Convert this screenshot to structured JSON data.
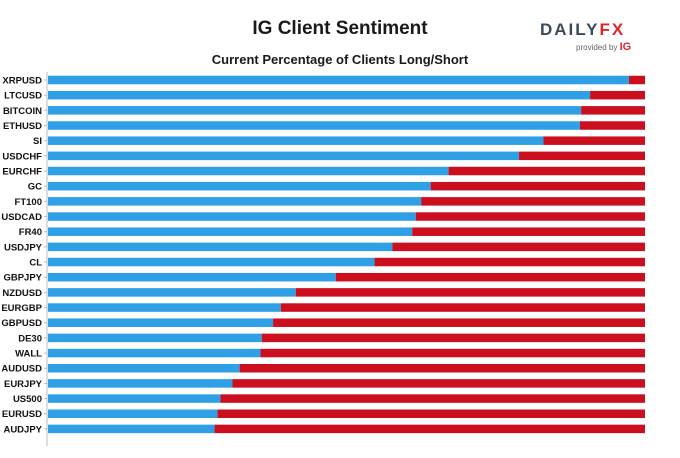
{
  "header": {
    "title": "IG Client Sentiment",
    "subtitle": "Current Percentage of Clients Long/Short",
    "logo_text_main": "DAILY",
    "logo_text_fx": "FX",
    "logo_provided_by": "provided by",
    "logo_ig": "IG"
  },
  "colors": {
    "long": "#2f9fe6",
    "short": "#cc0f1f"
  },
  "chart_data": {
    "type": "bar",
    "orientation": "horizontal",
    "stacked": true,
    "title": "IG Client Sentiment",
    "subtitle": "Current Percentage of Clients Long/Short",
    "xlim": [
      0,
      100
    ],
    "categories": [
      "XRPUSD",
      "LTCUSD",
      "BITCOIN",
      "ETHUSD",
      "SI",
      "USDCHF",
      "EURCHF",
      "GC",
      "FT100",
      "USDCAD",
      "FR40",
      "USDJPY",
      "CL",
      "GBPJPY",
      "NZDUSD",
      "EURGBP",
      "GBPUSD",
      "DE30",
      "WALL",
      "AUDUSD",
      "EURJPY",
      "US500",
      "EURUSD",
      "AUDJPY"
    ],
    "series": [
      {
        "values": [
          97.3,
          90.8,
          89.3,
          89.1,
          83.0,
          78.9,
          67.1,
          64.1,
          62.5,
          61.6,
          61.0,
          57.7,
          54.7,
          48.2,
          41.5,
          39.0,
          37.7,
          35.8,
          35.6,
          32.1,
          30.9,
          28.9,
          28.4,
          27.9
        ]
      },
      {
        "values": [
          2.7,
          9.2,
          10.7,
          10.9,
          17.0,
          21.1,
          32.9,
          35.9,
          37.5,
          38.4,
          39.0,
          42.3,
          45.3,
          51.8,
          58.5,
          61.0,
          62.3,
          64.2,
          64.4,
          67.9,
          69.1,
          71.1,
          71.6,
          72.1
        ]
      }
    ],
    "legend": "none",
    "grid": false
  }
}
